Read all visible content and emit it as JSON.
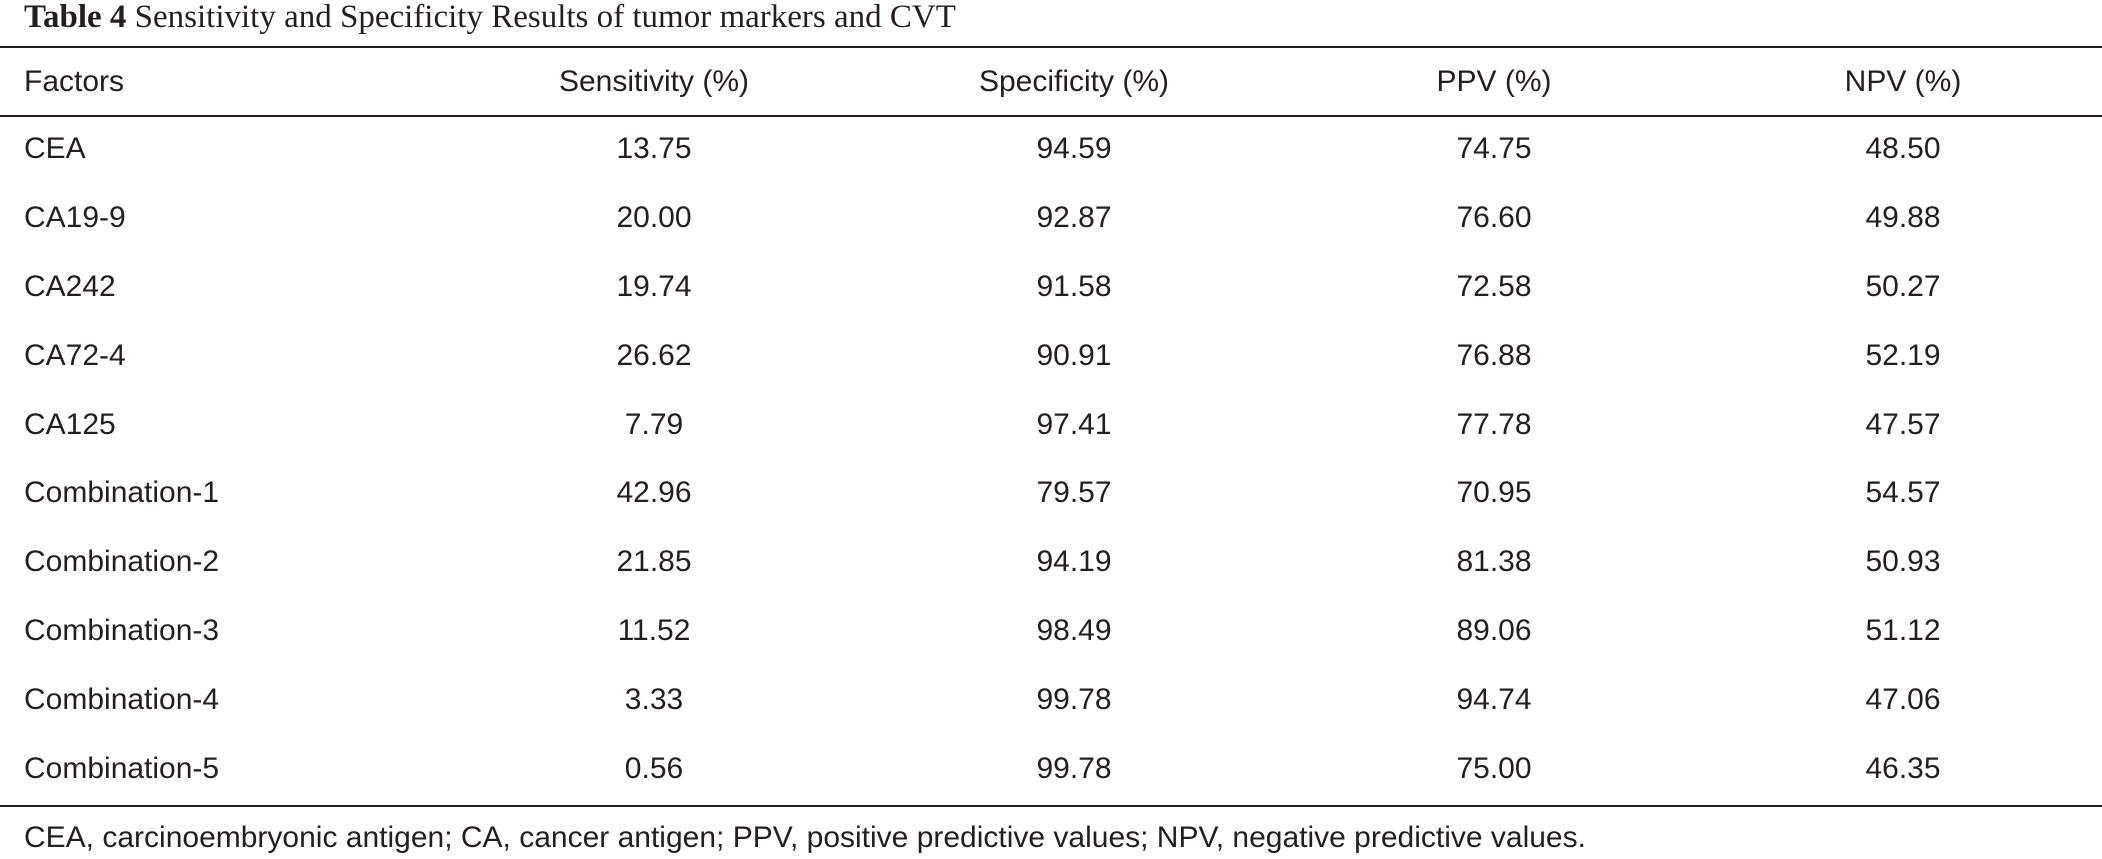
{
  "caption": {
    "label": "Table 4",
    "text": "Sensitivity and Specificity Results of tumor markers and CVT"
  },
  "table": {
    "headers": [
      "Factors",
      "Sensitivity (%)",
      "Specificity (%)",
      "PPV (%)",
      "NPV (%)"
    ],
    "rows": [
      [
        "CEA",
        "13.75",
        "94.59",
        "74.75",
        "48.50"
      ],
      [
        "CA19-9",
        "20.00",
        "92.87",
        "76.60",
        "49.88"
      ],
      [
        "CA242",
        "19.74",
        "91.58",
        "72.58",
        "50.27"
      ],
      [
        "CA72-4",
        "26.62",
        "90.91",
        "76.88",
        "52.19"
      ],
      [
        "CA125",
        "7.79",
        "97.41",
        "77.78",
        "47.57"
      ],
      [
        "Combination-1",
        "42.96",
        "79.57",
        "70.95",
        "54.57"
      ],
      [
        "Combination-2",
        "21.85",
        "94.19",
        "81.38",
        "50.93"
      ],
      [
        "Combination-3",
        "11.52",
        "98.49",
        "89.06",
        "51.12"
      ],
      [
        "Combination-4",
        "3.33",
        "99.78",
        "94.74",
        "47.06"
      ],
      [
        "Combination-5",
        "0.56",
        "99.78",
        "75.00",
        "46.35"
      ]
    ]
  },
  "footnote": "CEA, carcinoembryonic antigen; CA, cancer antigen; PPV, positive predictive values; NPV, negative predictive values."
}
